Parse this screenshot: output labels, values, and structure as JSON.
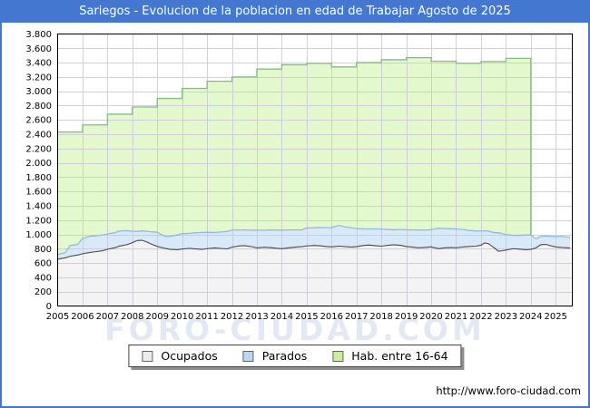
{
  "title": "Sariegos - Evolucion de la poblacion en edad de Trabajar Agosto de 2025",
  "watermark_text": "FORO-CIUDAD.COM",
  "footer_url": "http://www.foro-ciudad.com",
  "colors": {
    "titlebar_bg": "#4377d0",
    "titlebar_text": "#ffffff",
    "page_border": "#4377d0",
    "plot_bg": "#ffffff",
    "grid": "#c9c9d6",
    "frame": "#000000",
    "hab_fill": "#e4f8ce",
    "hab_line": "#85bc85",
    "parados_fill": "#d8e9f9",
    "parados_line": "#94b8e4",
    "ocupados_fill": "#f3f3f3",
    "ocupados_line": "#4a4a4a",
    "watermark": "#e3e9f4",
    "legend_border": "#444444",
    "legend_shadow": "#8f8f8f"
  },
  "legend": {
    "items": [
      {
        "id": "ocupados",
        "label": "Ocupados",
        "swatch": "#ececec"
      },
      {
        "id": "parados",
        "label": "Parados",
        "swatch": "#b9d6f2"
      },
      {
        "id": "hab",
        "label": "Hab. entre 16-64",
        "swatch": "#c9ee9e"
      }
    ]
  },
  "chart_data": {
    "type": "area",
    "title": "Sariegos - Evolucion de la poblacion en edad de Trabajar Agosto de 2025",
    "xlabel": "",
    "ylabel": "",
    "grid": true,
    "legend_position": "bottom-outside",
    "x_axis": {
      "range": [
        2005,
        2025.6667
      ],
      "tick_labels": [
        "2005",
        "2006",
        "2007",
        "2008",
        "2009",
        "2010",
        "2011",
        "2012",
        "2013",
        "2014",
        "2015",
        "2016",
        "2017",
        "2018",
        "2019",
        "2020",
        "2021",
        "2022",
        "2023",
        "2024",
        "2025"
      ]
    },
    "y_axis": {
      "range": [
        0,
        3800
      ],
      "tick_step": 200,
      "tick_labels": [
        "0",
        "200",
        "400",
        "600",
        "800",
        "1.000",
        "1.200",
        "1.400",
        "1.600",
        "1.800",
        "2.000",
        "2.200",
        "2.400",
        "2.600",
        "2.800",
        "3.000",
        "3.200",
        "3.400",
        "3.600",
        "3.800"
      ]
    },
    "series": [
      {
        "name": "Ocupados",
        "role": "stack-base",
        "points": [
          [
            2005.0,
            655
          ],
          [
            2005.3,
            672
          ],
          [
            2005.5,
            695
          ],
          [
            2005.8,
            712
          ],
          [
            2006.0,
            730
          ],
          [
            2006.3,
            748
          ],
          [
            2006.5,
            757
          ],
          [
            2006.8,
            772
          ],
          [
            2007.0,
            792
          ],
          [
            2007.3,
            815
          ],
          [
            2007.5,
            838
          ],
          [
            2007.8,
            858
          ],
          [
            2008.0,
            885
          ],
          [
            2008.2,
            915
          ],
          [
            2008.4,
            918
          ],
          [
            2008.6,
            892
          ],
          [
            2008.8,
            860
          ],
          [
            2009.0,
            832
          ],
          [
            2009.3,
            806
          ],
          [
            2009.5,
            792
          ],
          [
            2009.8,
            786
          ],
          [
            2010.0,
            796
          ],
          [
            2010.3,
            806
          ],
          [
            2010.5,
            799
          ],
          [
            2010.8,
            791
          ],
          [
            2011.0,
            801
          ],
          [
            2011.3,
            811
          ],
          [
            2011.5,
            806
          ],
          [
            2011.8,
            798
          ],
          [
            2012.0,
            822
          ],
          [
            2012.3,
            840
          ],
          [
            2012.5,
            843
          ],
          [
            2012.8,
            828
          ],
          [
            2013.0,
            812
          ],
          [
            2013.3,
            821
          ],
          [
            2013.5,
            816
          ],
          [
            2013.8,
            807
          ],
          [
            2014.0,
            801
          ],
          [
            2014.3,
            813
          ],
          [
            2014.5,
            821
          ],
          [
            2014.8,
            829
          ],
          [
            2015.0,
            839
          ],
          [
            2015.3,
            846
          ],
          [
            2015.5,
            841
          ],
          [
            2015.8,
            831
          ],
          [
            2016.0,
            826
          ],
          [
            2016.3,
            836
          ],
          [
            2016.5,
            831
          ],
          [
            2016.8,
            823
          ],
          [
            2017.0,
            829
          ],
          [
            2017.3,
            846
          ],
          [
            2017.5,
            851
          ],
          [
            2017.8,
            841
          ],
          [
            2018.0,
            836
          ],
          [
            2018.3,
            849
          ],
          [
            2018.5,
            856
          ],
          [
            2018.8,
            846
          ],
          [
            2019.0,
            831
          ],
          [
            2019.3,
            821
          ],
          [
            2019.5,
            813
          ],
          [
            2019.8,
            819
          ],
          [
            2020.0,
            826
          ],
          [
            2020.3,
            801
          ],
          [
            2020.5,
            811
          ],
          [
            2020.8,
            816
          ],
          [
            2021.0,
            813
          ],
          [
            2021.3,
            826
          ],
          [
            2021.5,
            831
          ],
          [
            2021.8,
            836
          ],
          [
            2022.0,
            851
          ],
          [
            2022.15,
            881
          ],
          [
            2022.3,
            871
          ],
          [
            2022.5,
            821
          ],
          [
            2022.7,
            766
          ],
          [
            2022.85,
            771
          ],
          [
            2023.0,
            781
          ],
          [
            2023.3,
            801
          ],
          [
            2023.5,
            796
          ],
          [
            2023.8,
            786
          ],
          [
            2024.0,
            791
          ],
          [
            2024.2,
            811
          ],
          [
            2024.4,
            856
          ],
          [
            2024.6,
            861
          ],
          [
            2024.8,
            841
          ],
          [
            2025.0,
            826
          ],
          [
            2025.3,
            816
          ],
          [
            2025.58,
            810
          ]
        ]
      },
      {
        "name": "Parados",
        "role": "stacked-on-base",
        "points": [
          [
            2005.0,
            65
          ],
          [
            2005.3,
            72
          ],
          [
            2005.5,
            150
          ],
          [
            2005.8,
            147
          ],
          [
            2006.0,
            215
          ],
          [
            2006.3,
            226
          ],
          [
            2006.5,
            224
          ],
          [
            2006.8,
            219
          ],
          [
            2007.0,
            214
          ],
          [
            2007.3,
            209
          ],
          [
            2007.5,
            211
          ],
          [
            2007.8,
            194
          ],
          [
            2008.0,
            160
          ],
          [
            2008.2,
            126
          ],
          [
            2008.4,
            131
          ],
          [
            2008.6,
            151
          ],
          [
            2008.8,
            176
          ],
          [
            2009.0,
            199
          ],
          [
            2009.3,
            166
          ],
          [
            2009.5,
            181
          ],
          [
            2009.8,
            206
          ],
          [
            2010.0,
            214
          ],
          [
            2010.3,
            209
          ],
          [
            2010.5,
            223
          ],
          [
            2010.8,
            236
          ],
          [
            2011.0,
            229
          ],
          [
            2011.3,
            216
          ],
          [
            2011.5,
            226
          ],
          [
            2011.8,
            243
          ],
          [
            2012.0,
            239
          ],
          [
            2012.3,
            221
          ],
          [
            2012.5,
            219
          ],
          [
            2012.8,
            231
          ],
          [
            2013.0,
            249
          ],
          [
            2013.3,
            236
          ],
          [
            2013.5,
            246
          ],
          [
            2013.8,
            253
          ],
          [
            2014.0,
            259
          ],
          [
            2014.3,
            249
          ],
          [
            2014.5,
            241
          ],
          [
            2014.8,
            233
          ],
          [
            2015.0,
            251
          ],
          [
            2015.3,
            246
          ],
          [
            2015.5,
            256
          ],
          [
            2015.8,
            263
          ],
          [
            2016.0,
            269
          ],
          [
            2016.3,
            291
          ],
          [
            2016.5,
            276
          ],
          [
            2016.8,
            269
          ],
          [
            2017.0,
            251
          ],
          [
            2017.3,
            231
          ],
          [
            2017.5,
            226
          ],
          [
            2017.8,
            236
          ],
          [
            2018.0,
            239
          ],
          [
            2018.3,
            219
          ],
          [
            2018.5,
            209
          ],
          [
            2018.8,
            223
          ],
          [
            2019.0,
            234
          ],
          [
            2019.3,
            241
          ],
          [
            2019.5,
            249
          ],
          [
            2019.8,
            241
          ],
          [
            2020.0,
            241
          ],
          [
            2020.3,
            286
          ],
          [
            2020.5,
            271
          ],
          [
            2020.8,
            263
          ],
          [
            2021.0,
            264
          ],
          [
            2021.3,
            241
          ],
          [
            2021.5,
            226
          ],
          [
            2021.8,
            213
          ],
          [
            2022.0,
            196
          ],
          [
            2022.15,
            171
          ],
          [
            2022.3,
            176
          ],
          [
            2022.5,
            206
          ],
          [
            2022.7,
            256
          ],
          [
            2022.85,
            241
          ],
          [
            2023.0,
            216
          ],
          [
            2023.3,
            186
          ],
          [
            2023.5,
            191
          ],
          [
            2023.8,
            206
          ],
          [
            2024.0,
            201
          ],
          [
            2024.2,
            131
          ],
          [
            2024.4,
            116
          ],
          [
            2024.6,
            116
          ],
          [
            2024.8,
            131
          ],
          [
            2025.0,
            146
          ],
          [
            2025.3,
            156
          ],
          [
            2025.58,
            150
          ]
        ]
      },
      {
        "name": "Hab. entre 16-64",
        "role": "independent-total-steps",
        "years": [
          2005,
          2006,
          2007,
          2008,
          2009,
          2010,
          2011,
          2012,
          2013,
          2014,
          2015,
          2016,
          2017,
          2018,
          2019,
          2020,
          2021,
          2022,
          2023
        ],
        "values": [
          2430,
          2530,
          2680,
          2780,
          2900,
          3040,
          3140,
          3200,
          3310,
          3370,
          3390,
          3340,
          3400,
          3440,
          3470,
          3420,
          3390,
          3415,
          3460
        ]
      }
    ]
  }
}
